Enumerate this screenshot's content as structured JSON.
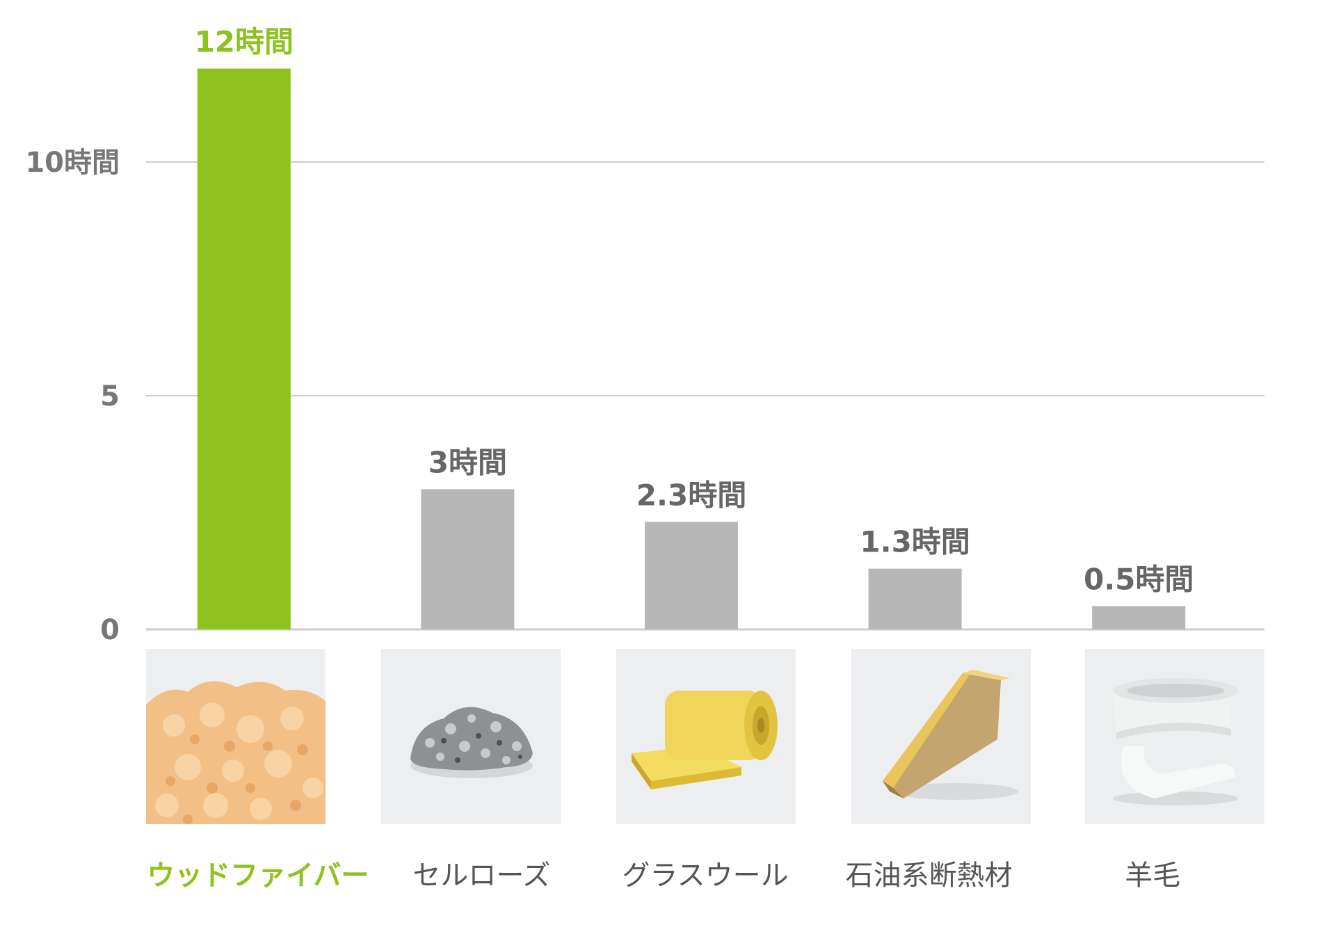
{
  "chart_data": {
    "type": "bar",
    "categories": [
      "ウッドファイバー",
      "セルローズ",
      "グラスウール",
      "石油系断熱材",
      "羊毛"
    ],
    "values": [
      12,
      3,
      2.3,
      1.3,
      0.5
    ],
    "data_labels": [
      "12時間",
      "3時間",
      "2.3時間",
      "1.3時間",
      "0.5時間"
    ],
    "ylim": [
      0,
      12
    ],
    "yticks": [
      0,
      5,
      10
    ],
    "ytick_labels": [
      "0",
      "5",
      "10時間"
    ],
    "grid": true,
    "highlight_index": 0
  },
  "colors": {
    "highlight": "#8dc21f",
    "bar": "#b7b7b7",
    "grid": "#cccccc",
    "text": "#555555",
    "tick_text": "#777777"
  },
  "thumbnails": [
    {
      "icon": "wood-fiber-image"
    },
    {
      "icon": "cellulose-image"
    },
    {
      "icon": "glass-wool-image"
    },
    {
      "icon": "petroleum-insulation-image"
    },
    {
      "icon": "sheep-wool-image"
    }
  ]
}
